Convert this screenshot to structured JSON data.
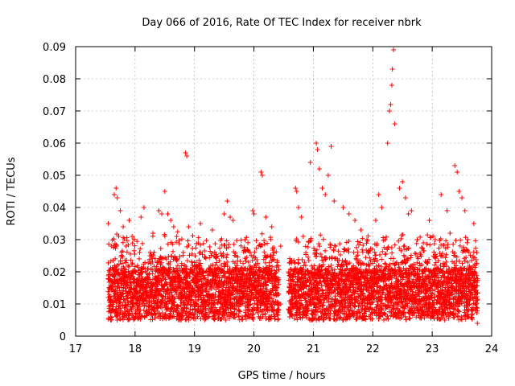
{
  "chart_data": {
    "type": "scatter",
    "title": "Day 066 of 2016, Rate Of TEC Index for receiver nbrk",
    "xlabel": "GPS time / hours",
    "ylabel": "ROTI / TECUs",
    "xlim": [
      17,
      24
    ],
    "ylim": [
      0,
      0.09
    ],
    "xticks": [
      "17",
      "18",
      "19",
      "20",
      "21",
      "22",
      "23",
      "24"
    ],
    "yticks": [
      "0",
      "0.01",
      "0.02",
      "0.03",
      "0.04",
      "0.05",
      "0.06",
      "0.07",
      "0.08",
      "0.09"
    ],
    "grid": true,
    "marker": "+",
    "color": "#ff0000",
    "series": [
      {
        "name": "ROTI",
        "points": [
          [
            17.55,
            0.035
          ],
          [
            17.6,
            0.028
          ],
          [
            17.65,
            0.044
          ],
          [
            17.68,
            0.046
          ],
          [
            17.7,
            0.043
          ],
          [
            17.75,
            0.039
          ],
          [
            17.8,
            0.034
          ],
          [
            17.85,
            0.028
          ],
          [
            17.9,
            0.036
          ],
          [
            17.95,
            0.031
          ],
          [
            18.1,
            0.037
          ],
          [
            18.15,
            0.04
          ],
          [
            18.3,
            0.032
          ],
          [
            18.4,
            0.039
          ],
          [
            18.45,
            0.038
          ],
          [
            18.5,
            0.045
          ],
          [
            18.55,
            0.038
          ],
          [
            18.6,
            0.036
          ],
          [
            18.65,
            0.034
          ],
          [
            18.7,
            0.031
          ],
          [
            18.85,
            0.057
          ],
          [
            18.87,
            0.056
          ],
          [
            18.9,
            0.034
          ],
          [
            19.1,
            0.035
          ],
          [
            19.3,
            0.033
          ],
          [
            19.5,
            0.038
          ],
          [
            19.55,
            0.042
          ],
          [
            19.6,
            0.037
          ],
          [
            19.65,
            0.036
          ],
          [
            19.85,
            0.03
          ],
          [
            19.98,
            0.039
          ],
          [
            20.0,
            0.038
          ],
          [
            20.12,
            0.051
          ],
          [
            20.14,
            0.05
          ],
          [
            20.2,
            0.037
          ],
          [
            20.3,
            0.034
          ],
          [
            20.45,
            0.028
          ],
          [
            20.7,
            0.046
          ],
          [
            20.72,
            0.045
          ],
          [
            20.75,
            0.04
          ],
          [
            20.8,
            0.037
          ],
          [
            20.95,
            0.054
          ],
          [
            21.05,
            0.06
          ],
          [
            21.07,
            0.058
          ],
          [
            21.1,
            0.052
          ],
          [
            21.15,
            0.046
          ],
          [
            21.2,
            0.044
          ],
          [
            21.25,
            0.05
          ],
          [
            21.3,
            0.059
          ],
          [
            21.35,
            0.042
          ],
          [
            21.5,
            0.04
          ],
          [
            21.6,
            0.038
          ],
          [
            21.7,
            0.036
          ],
          [
            21.8,
            0.033
          ],
          [
            21.9,
            0.03
          ],
          [
            22.05,
            0.036
          ],
          [
            22.1,
            0.044
          ],
          [
            22.15,
            0.04
          ],
          [
            22.25,
            0.06
          ],
          [
            22.28,
            0.07
          ],
          [
            22.3,
            0.072
          ],
          [
            22.32,
            0.078
          ],
          [
            22.33,
            0.083
          ],
          [
            22.35,
            0.089
          ],
          [
            22.37,
            0.066
          ],
          [
            22.45,
            0.046
          ],
          [
            22.5,
            0.048
          ],
          [
            22.55,
            0.043
          ],
          [
            22.6,
            0.038
          ],
          [
            22.65,
            0.039
          ],
          [
            22.75,
            0.03
          ],
          [
            22.85,
            0.029
          ],
          [
            22.95,
            0.036
          ],
          [
            23.05,
            0.03
          ],
          [
            23.15,
            0.044
          ],
          [
            23.25,
            0.039
          ],
          [
            23.3,
            0.032
          ],
          [
            23.38,
            0.053
          ],
          [
            23.42,
            0.051
          ],
          [
            23.45,
            0.045
          ],
          [
            23.5,
            0.043
          ],
          [
            23.55,
            0.039
          ],
          [
            23.6,
            0.03
          ],
          [
            23.7,
            0.035
          ],
          [
            23.75,
            0.026
          ],
          [
            23.76,
            0.004
          ],
          [
            17.55,
            0.012
          ],
          [
            17.6,
            0.008
          ],
          [
            17.7,
            0.005
          ],
          [
            17.85,
            0.014
          ],
          [
            17.95,
            0.007
          ],
          [
            18.1,
            0.006
          ],
          [
            18.25,
            0.009
          ],
          [
            18.45,
            0.011
          ],
          [
            18.6,
            0.006
          ],
          [
            18.75,
            0.013
          ],
          [
            18.9,
            0.005
          ],
          [
            19.05,
            0.008
          ],
          [
            19.2,
            0.015
          ],
          [
            19.35,
            0.007
          ],
          [
            19.5,
            0.012
          ],
          [
            19.65,
            0.006
          ],
          [
            19.8,
            0.01
          ],
          [
            19.95,
            0.007
          ],
          [
            20.1,
            0.013
          ],
          [
            20.25,
            0.006
          ],
          [
            20.45,
            0.01
          ],
          [
            20.6,
            0.006
          ],
          [
            20.75,
            0.014
          ],
          [
            20.9,
            0.008
          ],
          [
            21.05,
            0.005
          ],
          [
            21.2,
            0.012
          ],
          [
            21.35,
            0.007
          ],
          [
            21.5,
            0.015
          ],
          [
            21.65,
            0.008
          ],
          [
            21.8,
            0.006
          ],
          [
            21.95,
            0.013
          ],
          [
            22.1,
            0.007
          ],
          [
            22.25,
            0.011
          ],
          [
            22.4,
            0.006
          ],
          [
            22.55,
            0.014
          ],
          [
            22.7,
            0.008
          ],
          [
            22.85,
            0.012
          ],
          [
            23.0,
            0.006
          ],
          [
            23.15,
            0.013
          ],
          [
            23.3,
            0.007
          ],
          [
            23.45,
            0.011
          ],
          [
            23.6,
            0.006
          ],
          [
            23.72,
            0.01
          ]
        ]
      }
    ]
  }
}
